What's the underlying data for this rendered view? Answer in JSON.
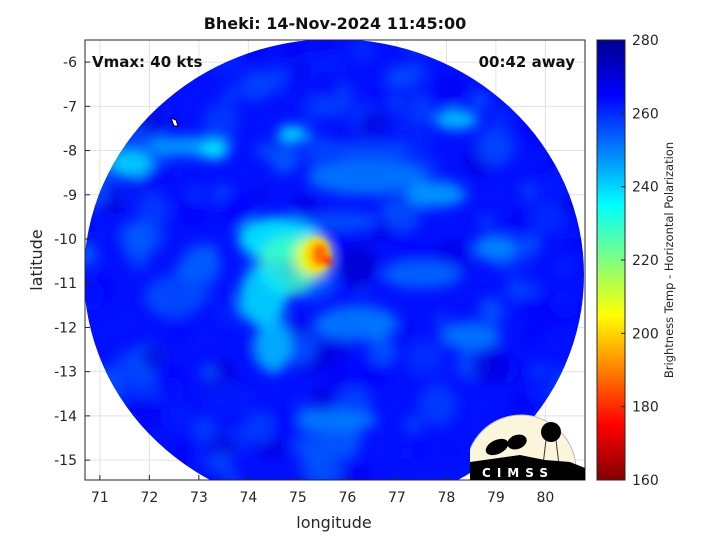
{
  "chart_data": {
    "type": "heatmap",
    "title": "Bheki: 14-Nov-2024 11:45:00",
    "xlabel": "longitude",
    "ylabel": "latitude",
    "xlim": [
      70.7,
      80.8
    ],
    "ylim": [
      -15.45,
      -5.5
    ],
    "xticks": [
      "71",
      "72",
      "73",
      "74",
      "75",
      "76",
      "77",
      "78",
      "79",
      "80"
    ],
    "yticks": [
      "-6",
      "-7",
      "-8",
      "-9",
      "-10",
      "-11",
      "-12",
      "-13",
      "-14",
      "-15"
    ],
    "grid": true,
    "annotations": {
      "left": "Vmax: 40 kts",
      "right": "00:42 away"
    },
    "colorbar": {
      "label": "Brightness Temp - Horizontal Polarization",
      "colormap": "jet",
      "range": [
        160,
        280
      ],
      "ticks": [
        "160",
        "180",
        "200",
        "220",
        "240",
        "260",
        "280"
      ]
    },
    "storm_center": {
      "lon": 75.6,
      "lat": -10.5,
      "min_temp_approx": 175
    }
  },
  "logo": {
    "text": "CIMSS"
  }
}
